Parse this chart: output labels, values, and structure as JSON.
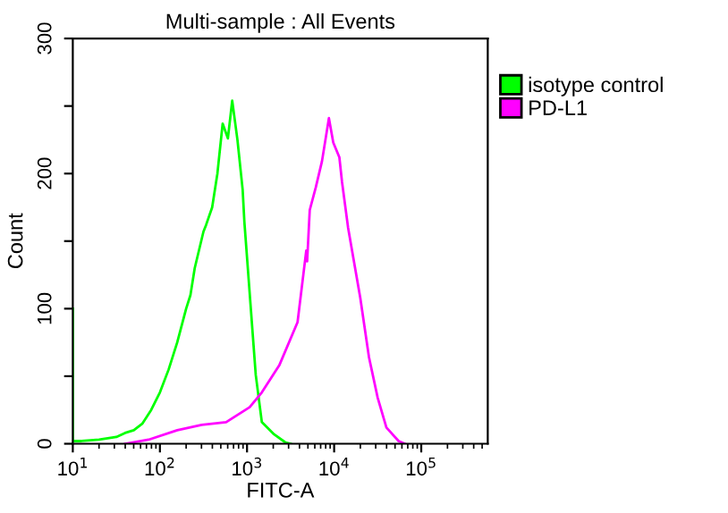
{
  "chart_data": {
    "type": "line",
    "title": "Multi-sample : All Events",
    "xlabel": "FITC-A",
    "ylabel": "Count",
    "log": "x",
    "xlim": [
      10,
      580000
    ],
    "xticks": [
      {
        "value": 10,
        "label": "10$^{1}$"
      },
      {
        "value": 100,
        "label": "10$^{2}$"
      },
      {
        "value": 1000,
        "label": "10$^{3}$"
      },
      {
        "value": 10000,
        "label": "10$^{4}$"
      },
      {
        "value": 100000,
        "label": "10$^{5}$"
      }
    ],
    "ylim": [
      0,
      300
    ],
    "yticks": [
      0,
      {
        "value": 50,
        "label": null
      },
      100,
      {
        "value": 150,
        "label": null
      },
      200,
      {
        "value": 250,
        "label": null
      },
      300
    ],
    "legend": "top right",
    "grid": false,
    "series": [
      {
        "name": "isotype control",
        "color": "#00ff00",
        "x": [
          10,
          10,
          12.6,
          20,
          31.6,
          39.8,
          50.1,
          63.1,
          79.4,
          100,
          126,
          158,
          200,
          224,
          251,
          316,
          339,
          398,
          457,
          525,
          603,
          676,
          776,
          891,
          933,
          1259,
          1479,
          2042,
          2754,
          3162
        ],
        "values": [
          100,
          2,
          2,
          3,
          5,
          8,
          10,
          15,
          25,
          38,
          55,
          75,
          100,
          110,
          130,
          157,
          162,
          175,
          200,
          237,
          226,
          254,
          225,
          188,
          164,
          51,
          16,
          7,
          1,
          0
        ]
      },
      {
        "name": "PD-L1",
        "color": "#ff00ff",
        "x": [
          39.8,
          74.1,
          158,
          302,
          575,
          1072,
          1479,
          2344,
          3802,
          4786,
          4898,
          5248,
          6166,
          7244,
          8710,
          9772,
          11482,
          12303,
          14454,
          16982,
          19953,
          25119,
          31623,
          39811,
          54954,
          64565
        ],
        "values": [
          0,
          3,
          10,
          14,
          16,
          27,
          38,
          58,
          90,
          143,
          135,
          173,
          190,
          209,
          241,
          223,
          212,
          194,
          160,
          134,
          108,
          64,
          34,
          12,
          2,
          0
        ]
      }
    ]
  }
}
